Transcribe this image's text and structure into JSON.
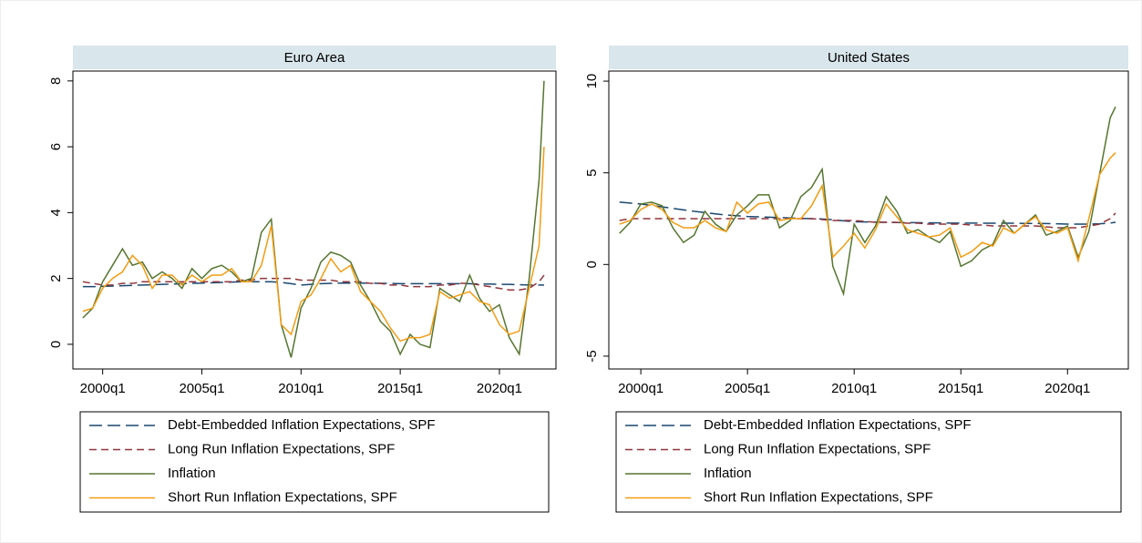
{
  "chart_data": [
    {
      "type": "line",
      "title": "Euro Area",
      "x": [
        1999,
        1999.5,
        2000,
        2000.5,
        2001,
        2001.5,
        2002,
        2002.5,
        2003,
        2003.5,
        2004,
        2004.5,
        2005,
        2005.5,
        2006,
        2006.5,
        2007,
        2007.5,
        2008,
        2008.5,
        2009,
        2009.5,
        2010,
        2010.5,
        2011,
        2011.5,
        2012,
        2012.5,
        2013,
        2013.5,
        2014,
        2014.5,
        2015,
        2015.5,
        2016,
        2016.5,
        2017,
        2017.5,
        2018,
        2018.5,
        2019,
        2019.5,
        2020,
        2020.5,
        2021,
        2021.5,
        2022,
        2022.25
      ],
      "xlim": [
        1998.5,
        2022.85
      ],
      "xticks": [
        {
          "value": 2000,
          "label": "2000q1"
        },
        {
          "value": 2005,
          "label": "2005q1"
        },
        {
          "value": 2010,
          "label": "2010q1"
        },
        {
          "value": 2015,
          "label": "2015q1"
        },
        {
          "value": 2020,
          "label": "2020q1"
        }
      ],
      "ylim": [
        -0.75,
        8.3
      ],
      "yticks": [
        0,
        2,
        4,
        6,
        8
      ],
      "series": [
        {
          "name": "Debt-Embedded Inflation Expectations, SPF",
          "color": "#1a476f",
          "dash": "long-dash",
          "values": [
            1.75,
            1.75,
            1.76,
            1.77,
            1.78,
            1.79,
            1.8,
            1.81,
            1.82,
            1.83,
            1.84,
            1.85,
            1.86,
            1.87,
            1.88,
            1.89,
            1.9,
            1.9,
            1.9,
            1.9,
            1.88,
            1.84,
            1.8,
            1.82,
            1.84,
            1.85,
            1.86,
            1.86,
            1.86,
            1.86,
            1.85,
            1.85,
            1.84,
            1.84,
            1.84,
            1.84,
            1.84,
            1.84,
            1.84,
            1.84,
            1.83,
            1.83,
            1.82,
            1.82,
            1.81,
            1.8,
            1.8,
            1.8
          ]
        },
        {
          "name": "Long Run Inflation Expectations, SPF",
          "color": "#90353b",
          "dash": "dash",
          "values": [
            1.9,
            1.85,
            1.8,
            1.8,
            1.85,
            1.85,
            1.9,
            1.9,
            1.9,
            1.9,
            1.9,
            1.9,
            1.9,
            1.9,
            1.9,
            1.9,
            1.95,
            1.95,
            2.0,
            2.0,
            2.0,
            2.0,
            1.95,
            1.95,
            1.95,
            1.95,
            1.9,
            1.9,
            1.9,
            1.85,
            1.85,
            1.8,
            1.8,
            1.75,
            1.75,
            1.75,
            1.8,
            1.8,
            1.85,
            1.85,
            1.8,
            1.75,
            1.7,
            1.65,
            1.65,
            1.7,
            1.9,
            2.1
          ]
        },
        {
          "name": "Inflation",
          "color": "#55752f",
          "dash": "solid",
          "values": [
            0.8,
            1.1,
            1.9,
            2.4,
            2.9,
            2.4,
            2.5,
            2.0,
            2.2,
            2.0,
            1.7,
            2.3,
            2.0,
            2.3,
            2.4,
            2.2,
            1.9,
            2.0,
            3.4,
            3.8,
            0.6,
            -0.4,
            1.1,
            1.7,
            2.5,
            2.8,
            2.7,
            2.5,
            1.8,
            1.3,
            0.7,
            0.4,
            -0.3,
            0.3,
            0.0,
            -0.1,
            1.7,
            1.5,
            1.3,
            2.1,
            1.4,
            1.0,
            1.2,
            0.2,
            -0.3,
            2.0,
            5.0,
            8.0
          ]
        },
        {
          "name": "Short Run Inflation Expectations, SPF",
          "color": "#f39c12",
          "dash": "solid",
          "values": [
            1.0,
            1.1,
            1.7,
            2.0,
            2.2,
            2.7,
            2.4,
            1.7,
            2.1,
            2.1,
            1.8,
            2.1,
            1.9,
            2.1,
            2.1,
            2.3,
            1.9,
            1.9,
            2.4,
            3.6,
            0.6,
            0.3,
            1.3,
            1.5,
            2.0,
            2.6,
            2.2,
            2.4,
            1.6,
            1.3,
            1.0,
            0.5,
            0.1,
            0.2,
            0.2,
            0.3,
            1.6,
            1.4,
            1.5,
            1.6,
            1.3,
            1.2,
            0.6,
            0.3,
            0.4,
            1.7,
            3.0,
            6.0
          ]
        }
      ]
    },
    {
      "type": "line",
      "title": "United States",
      "x": [
        1999,
        1999.5,
        2000,
        2000.5,
        2001,
        2001.5,
        2002,
        2002.5,
        2003,
        2003.5,
        2004,
        2004.5,
        2005,
        2005.5,
        2006,
        2006.5,
        2007,
        2007.5,
        2008,
        2008.5,
        2009,
        2009.5,
        2010,
        2010.5,
        2011,
        2011.5,
        2012,
        2012.5,
        2013,
        2013.5,
        2014,
        2014.5,
        2015,
        2015.5,
        2016,
        2016.5,
        2017,
        2017.5,
        2018,
        2018.5,
        2019,
        2019.5,
        2020,
        2020.5,
        2021,
        2021.5,
        2022,
        2022.25
      ],
      "xlim": [
        1998.5,
        2022.85
      ],
      "xticks": [
        {
          "value": 2000,
          "label": "2000q1"
        },
        {
          "value": 2005,
          "label": "2005q1"
        },
        {
          "value": 2010,
          "label": "2010q1"
        },
        {
          "value": 2015,
          "label": "2015q1"
        },
        {
          "value": 2020,
          "label": "2020q1"
        }
      ],
      "ylim": [
        -5.7,
        10.55
      ],
      "yticks": [
        -5,
        0,
        5,
        10
      ],
      "series": [
        {
          "name": "Debt-Embedded Inflation Expectations, SPF",
          "color": "#1a476f",
          "dash": "long-dash",
          "values": [
            3.4,
            3.35,
            3.3,
            3.22,
            3.14,
            3.06,
            2.98,
            2.9,
            2.83,
            2.76,
            2.7,
            2.66,
            2.62,
            2.6,
            2.58,
            2.56,
            2.54,
            2.52,
            2.5,
            2.48,
            2.44,
            2.38,
            2.33,
            2.32,
            2.31,
            2.3,
            2.29,
            2.28,
            2.28,
            2.27,
            2.27,
            2.26,
            2.26,
            2.26,
            2.25,
            2.25,
            2.25,
            2.25,
            2.24,
            2.24,
            2.23,
            2.22,
            2.2,
            2.2,
            2.2,
            2.22,
            2.26,
            2.3
          ]
        },
        {
          "name": "Long Run Inflation Expectations, SPF",
          "color": "#90353b",
          "dash": "dash",
          "values": [
            2.4,
            2.5,
            2.5,
            2.5,
            2.5,
            2.5,
            2.5,
            2.5,
            2.5,
            2.5,
            2.5,
            2.5,
            2.5,
            2.5,
            2.5,
            2.5,
            2.5,
            2.5,
            2.5,
            2.45,
            2.4,
            2.4,
            2.4,
            2.35,
            2.3,
            2.3,
            2.3,
            2.25,
            2.25,
            2.2,
            2.2,
            2.2,
            2.2,
            2.15,
            2.15,
            2.1,
            2.1,
            2.1,
            2.1,
            2.1,
            2.05,
            2.0,
            2.0,
            2.0,
            2.1,
            2.2,
            2.5,
            2.8
          ]
        },
        {
          "name": "Inflation",
          "color": "#55752f",
          "dash": "solid",
          "values": [
            1.7,
            2.3,
            3.3,
            3.4,
            3.2,
            2.0,
            1.2,
            1.6,
            2.9,
            2.2,
            1.8,
            2.7,
            3.2,
            3.8,
            3.8,
            2.0,
            2.4,
            3.7,
            4.2,
            5.2,
            -0.1,
            -1.6,
            2.2,
            1.2,
            2.1,
            3.7,
            2.9,
            1.7,
            1.9,
            1.5,
            1.2,
            1.8,
            -0.1,
            0.2,
            0.8,
            1.1,
            2.4,
            1.7,
            2.2,
            2.7,
            1.6,
            1.8,
            2.1,
            0.4,
            1.8,
            4.9,
            8.0,
            8.6
          ]
        },
        {
          "name": "Short Run Inflation Expectations, SPF",
          "color": "#f39c12",
          "dash": "solid",
          "values": [
            2.2,
            2.4,
            3.0,
            3.3,
            3.0,
            2.3,
            2.0,
            2.0,
            2.4,
            2.0,
            1.8,
            3.4,
            2.8,
            3.3,
            3.4,
            2.4,
            2.5,
            2.5,
            3.2,
            4.3,
            0.4,
            1.0,
            1.7,
            0.9,
            1.9,
            3.3,
            2.6,
            1.9,
            1.7,
            1.5,
            1.6,
            2.0,
            0.4,
            0.7,
            1.2,
            1.0,
            2.0,
            1.7,
            2.2,
            2.6,
            1.9,
            1.7,
            2.0,
            0.2,
            2.5,
            4.9,
            5.8,
            6.1
          ]
        }
      ]
    }
  ]
}
